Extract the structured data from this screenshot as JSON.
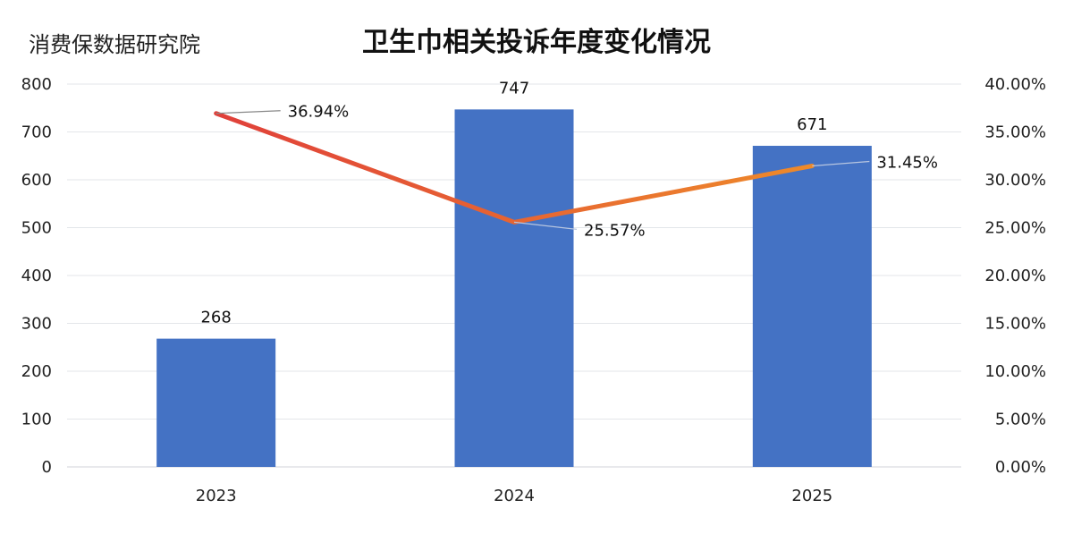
{
  "source_label": "消费保数据研究院",
  "chart_data": {
    "type": "bar+line",
    "title": "卫生巾相关投诉年度变化情况",
    "categories": [
      "2023",
      "2024",
      "2025"
    ],
    "series": [
      {
        "type": "bar",
        "axis": "left",
        "values": [
          268,
          747,
          671
        ],
        "labels": [
          "268",
          "747",
          "671"
        ]
      },
      {
        "type": "line",
        "axis": "right",
        "values": [
          36.94,
          25.57,
          31.45
        ],
        "labels": [
          "36.94%",
          "25.57%",
          "31.45%"
        ]
      }
    ],
    "ylim_left": [
      0,
      800
    ],
    "yticks_left": [
      "0",
      "100",
      "200",
      "300",
      "400",
      "500",
      "600",
      "700",
      "800"
    ],
    "ylim_right": [
      0,
      40
    ],
    "yticks_right": [
      "0.00%",
      "5.00%",
      "10.00%",
      "15.00%",
      "20.00%",
      "25.00%",
      "30.00%",
      "35.00%",
      "40.00%"
    ],
    "grid": true,
    "legend": "none",
    "colors": {
      "bar": "#4472C4",
      "line_start": "#E0403A",
      "line_end": "#EE8A2A",
      "grid": "#E3E6EA"
    }
  }
}
